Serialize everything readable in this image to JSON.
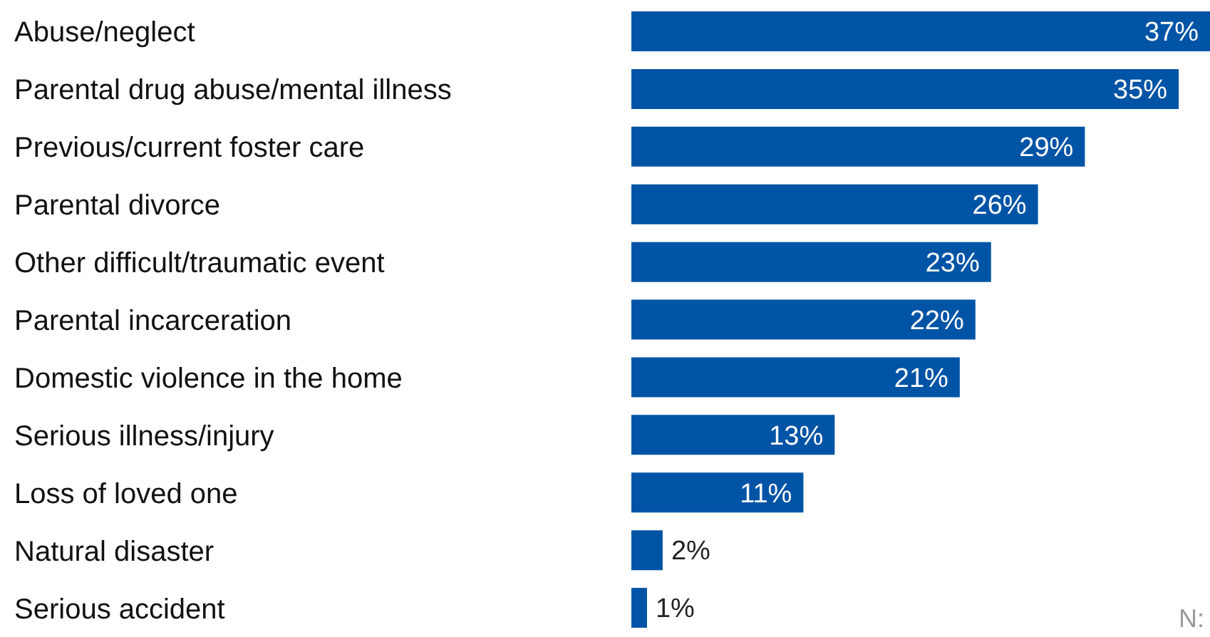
{
  "chart_data": {
    "type": "bar",
    "orientation": "horizontal",
    "categories": [
      "Abuse/neglect",
      "Parental drug abuse/mental illness",
      "Previous/current foster care",
      "Parental divorce",
      "Other difficult/traumatic event",
      "Parental incarceration",
      "Domestic violence in the home",
      "Serious illness/injury",
      "Loss of loved one",
      "Natural disaster",
      "Serious accident"
    ],
    "values": [
      37,
      35,
      29,
      26,
      23,
      22,
      21,
      13,
      11,
      2,
      1
    ],
    "value_labels": [
      "37%",
      "35%",
      "29%",
      "26%",
      "23%",
      "22%",
      "21%",
      "13%",
      "11%",
      "2%",
      "1%"
    ],
    "color": "#0054a6",
    "annotations": [
      "N:"
    ]
  }
}
